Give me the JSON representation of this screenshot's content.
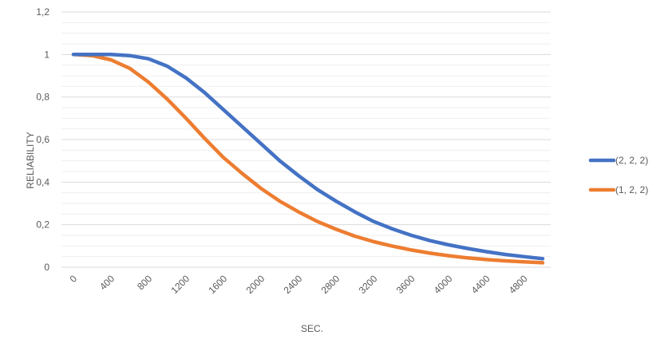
{
  "chart_data": {
    "type": "line",
    "xlabel": "SEC.",
    "ylabel": "RELIABILITY",
    "title": "",
    "x": [
      0,
      200,
      400,
      600,
      800,
      1000,
      1200,
      1400,
      1600,
      1800,
      2000,
      2200,
      2400,
      2600,
      2800,
      3000,
      3200,
      3400,
      3600,
      3800,
      4000,
      4200,
      4400,
      4600,
      4800,
      5000
    ],
    "x_tick_labels": [
      "0",
      "400",
      "800",
      "1200",
      "1600",
      "2000",
      "2400",
      "2800",
      "3200",
      "3600",
      "4000",
      "4400",
      "4800"
    ],
    "y_tick_labels": [
      "0",
      "0,2",
      "0,4",
      "0,6",
      "0,8",
      "1",
      "1,2"
    ],
    "ylim": [
      0,
      1.2
    ],
    "xlim": [
      0,
      5000
    ],
    "grid": true,
    "legend_position": "right",
    "series": [
      {
        "name": "(2, 2, 2)",
        "color": "#4472C4",
        "values": [
          1.0,
          1.0,
          1.0,
          0.995,
          0.98,
          0.945,
          0.89,
          0.82,
          0.74,
          0.66,
          0.58,
          0.5,
          0.43,
          0.365,
          0.31,
          0.26,
          0.215,
          0.18,
          0.15,
          0.125,
          0.105,
          0.088,
          0.073,
          0.06,
          0.05,
          0.04
        ]
      },
      {
        "name": "(1, 2, 2)",
        "color": "#ED7D31",
        "values": [
          1.0,
          0.995,
          0.975,
          0.935,
          0.87,
          0.79,
          0.7,
          0.605,
          0.515,
          0.44,
          0.37,
          0.31,
          0.26,
          0.215,
          0.178,
          0.146,
          0.12,
          0.099,
          0.081,
          0.066,
          0.054,
          0.044,
          0.036,
          0.03,
          0.025,
          0.021
        ]
      }
    ]
  }
}
